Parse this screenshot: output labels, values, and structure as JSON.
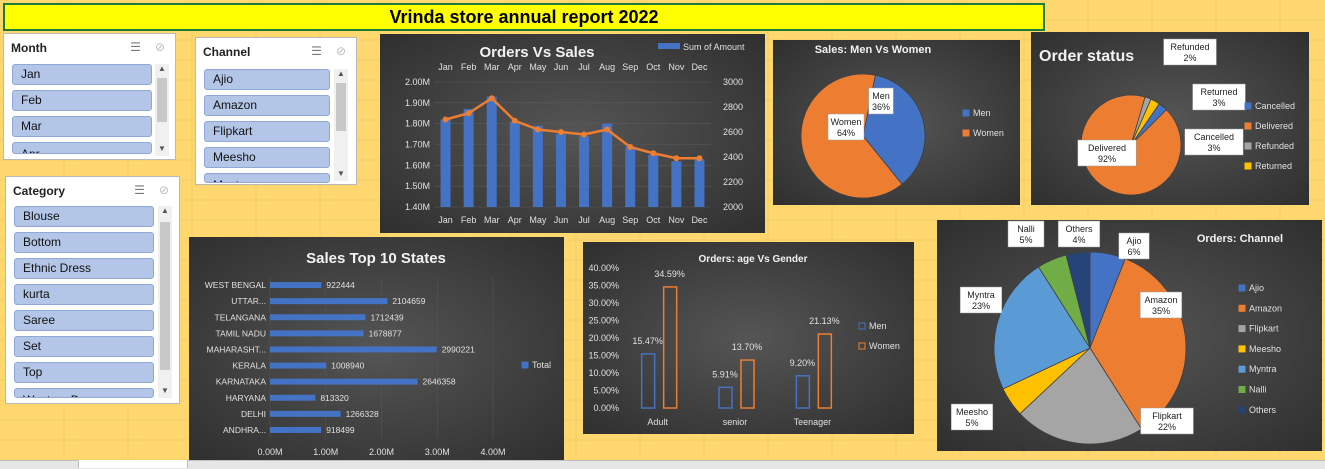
{
  "report_title": "Vrinda store annual report 2022",
  "slicers": {
    "month": {
      "title": "Month",
      "items": [
        "Jan",
        "Feb",
        "Mar",
        "Apr"
      ]
    },
    "channel": {
      "title": "Channel",
      "items": [
        "Ajio",
        "Amazon",
        "Flipkart",
        "Meesho",
        "Myntra"
      ]
    },
    "category": {
      "title": "Category",
      "items": [
        "Blouse",
        "Bottom",
        "Ethnic Dress",
        "kurta",
        "Saree",
        "Set",
        "Top",
        "Western Dress"
      ]
    }
  },
  "icons": {
    "multi_select": "multi-select-icon",
    "clear_filter": "clear-filter-icon",
    "scroll_up": "scroll-up-icon",
    "scroll_down": "scroll-down-icon"
  },
  "colors": {
    "blue": "#4472c4",
    "orange": "#ed7d31",
    "gray": "#a5a5a5",
    "yellow": "#ffc000",
    "lightblue": "#5b9bd5",
    "green": "#70ad47",
    "navy": "#264478"
  },
  "chart_data": [
    {
      "id": "orders_vs_sales",
      "type": "bar",
      "title": "Orders Vs Sales",
      "legend": "Sum of Amount",
      "categories": [
        "Jan",
        "Feb",
        "Mar",
        "Apr",
        "May",
        "Jun",
        "Jul",
        "Aug",
        "Sep",
        "Oct",
        "Nov",
        "Dec"
      ],
      "series": [
        {
          "name": "Sum of Amount",
          "type": "bar",
          "values": [
            1.82,
            1.87,
            1.93,
            1.81,
            1.79,
            1.75,
            1.74,
            1.8,
            1.69,
            1.65,
            1.62,
            1.63
          ]
        },
        {
          "type": "line",
          "values": [
            2700,
            2750,
            2870,
            2690,
            2620,
            2600,
            2580,
            2620,
            2480,
            2430,
            2390,
            2390
          ]
        }
      ],
      "y_left_ticks": [
        "2.00M",
        "1.90M",
        "1.80M",
        "1.70M",
        "1.60M",
        "1.50M",
        "1.40M"
      ],
      "y_left_range": [
        1.4,
        2.0
      ],
      "y_right_ticks": [
        "3000",
        "2800",
        "2600",
        "2400",
        "2200",
        "2000"
      ],
      "y_right_range": [
        2000,
        3000
      ]
    },
    {
      "id": "sales_men_women",
      "type": "pie",
      "title": "Sales: Men Vs Women",
      "slices": [
        {
          "name": "Men",
          "value": 36,
          "label": "36%"
        },
        {
          "name": "Women",
          "value": 64,
          "label": "64%"
        }
      ]
    },
    {
      "id": "order_status",
      "type": "pie",
      "title": "Order status",
      "slices": [
        {
          "name": "Cancelled",
          "value": 3,
          "label": "3%"
        },
        {
          "name": "Delivered",
          "value": 92,
          "label": "92%"
        },
        {
          "name": "Refunded",
          "value": 2,
          "label": "2%"
        },
        {
          "name": "Returned",
          "value": 3,
          "label": "3%"
        }
      ]
    },
    {
      "id": "sales_top_states",
      "type": "bar",
      "orientation": "horizontal",
      "title": "Sales Top 10 States",
      "legend": "Total",
      "categories": [
        "WEST BENGAL",
        "UTTAR...",
        "TELANGANA",
        "TAMIL NADU",
        "MAHARASHT...",
        "KERALA",
        "KARNATAKA",
        "HARYANA",
        "DELHI",
        "ANDHRA..."
      ],
      "values": [
        922444,
        2104659,
        1712439,
        1678877,
        2990221,
        1008940,
        2646358,
        813320,
        1266328,
        918499
      ],
      "value_labels": [
        "922444",
        "2104659",
        "1712439",
        "1678877",
        "2990221",
        "1008940",
        "2646358",
        "813320",
        "1266328",
        "918499"
      ],
      "x_ticks": [
        "0.00M",
        "1.00M",
        "2.00M",
        "3.00M",
        "4.00M"
      ],
      "x_range": [
        0,
        4000000
      ]
    },
    {
      "id": "age_vs_gender",
      "type": "bar",
      "title": "Orders: age Vs Gender",
      "categories": [
        "Adult",
        "senior",
        "Teenager"
      ],
      "series": [
        {
          "name": "Men",
          "values": [
            15.47,
            5.91,
            9.2
          ],
          "labels": [
            "15.47%",
            "5.91%",
            "9.20%"
          ]
        },
        {
          "name": "Women",
          "values": [
            34.59,
            13.7,
            21.13
          ],
          "labels": [
            "34.59%",
            "13.70%",
            "21.13%"
          ]
        }
      ],
      "y_ticks": [
        "40.00%",
        "35.00%",
        "30.00%",
        "25.00%",
        "20.00%",
        "15.00%",
        "10.00%",
        "5.00%",
        "0.00%"
      ],
      "y_range": [
        0,
        40
      ]
    },
    {
      "id": "orders_channel",
      "type": "pie",
      "title": "Orders: Channel",
      "slices": [
        {
          "name": "Ajio",
          "value": 6,
          "label": "6%"
        },
        {
          "name": "Amazon",
          "value": 35,
          "label": "35%"
        },
        {
          "name": "Flipkart",
          "value": 22,
          "label": "22%"
        },
        {
          "name": "Meesho",
          "value": 5,
          "label": "5%"
        },
        {
          "name": "Myntra",
          "value": 23,
          "label": "23%"
        },
        {
          "name": "Nalli",
          "value": 5,
          "label": "5%"
        },
        {
          "name": "Others",
          "value": 4,
          "label": "4%"
        }
      ]
    }
  ]
}
